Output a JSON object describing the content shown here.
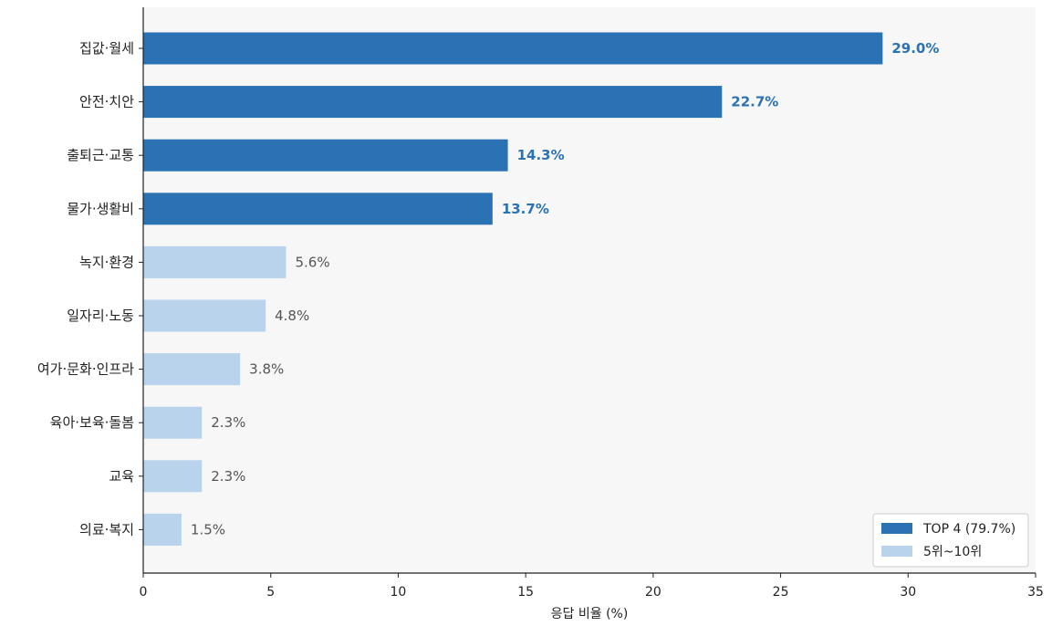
{
  "chart_data": {
    "type": "bar",
    "orientation": "horizontal",
    "categories": [
      "집값·월세",
      "안전·치안",
      "출퇴근·교통",
      "물가·생활비",
      "녹지·환경",
      "일자리·노동",
      "여가·문화·인프라",
      "육아·보육·돌봄",
      "교육",
      "의료·복지"
    ],
    "values": [
      29.0,
      22.7,
      14.3,
      13.7,
      5.6,
      4.8,
      3.8,
      2.3,
      2.3,
      1.5
    ],
    "value_labels": [
      "29.0%",
      "22.7%",
      "14.3%",
      "13.7%",
      "5.6%",
      "4.8%",
      "3.8%",
      "2.3%",
      "2.3%",
      "1.5%"
    ],
    "group": [
      "top",
      "top",
      "top",
      "top",
      "rest",
      "rest",
      "rest",
      "rest",
      "rest",
      "rest"
    ],
    "xlabel": "응답 비율 (%)",
    "ylabel": "",
    "title": "",
    "xlim": [
      0,
      35
    ],
    "xticks": [
      0,
      5,
      10,
      15,
      20,
      25,
      30,
      35
    ],
    "xtick_labels": [
      "0",
      "5",
      "10",
      "15",
      "20",
      "25",
      "30",
      "35"
    ],
    "grid": false,
    "legend": {
      "position": "bottom-right",
      "entries": [
        {
          "label": "TOP 4 (79.7%)",
          "group": "top"
        },
        {
          "label": "5위~10위",
          "group": "rest"
        }
      ]
    },
    "colors": {
      "top": "#2b72b4",
      "rest": "#b8d3eb",
      "top_label": "#2b72b4",
      "rest_label": "#555555",
      "plot_background": "#f7f7f7"
    }
  }
}
